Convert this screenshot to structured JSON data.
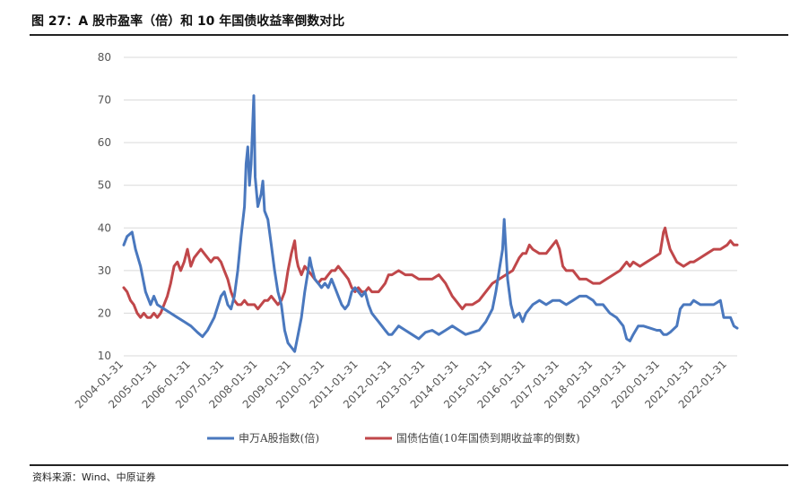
{
  "header": {
    "title": "图 27：A 股市盈率（倍）和 10 年国债收益率倒数对比"
  },
  "footer": {
    "source": "资料来源：Wind、中原证券"
  },
  "colors": {
    "series_1": "#4a78be",
    "series_2": "#c0474a",
    "grid": "#d9d9d9"
  },
  "chart_data": {
    "type": "line",
    "title": "",
    "xlabel": "",
    "ylabel": "",
    "ylim": [
      10,
      80
    ],
    "yticks": [
      10,
      20,
      30,
      40,
      50,
      60,
      70,
      80
    ],
    "grid": true,
    "legend_position": "bottom",
    "xticks": [
      "2004-01-31",
      "2005-01-31",
      "2006-01-31",
      "2007-01-31",
      "2008-01-31",
      "2009-01-31",
      "2010-01-31",
      "2011-01-31",
      "2012-01-31",
      "2013-01-31",
      "2014-01-31",
      "2015-01-31",
      "2016-01-31",
      "2017-01-31",
      "2018-01-31",
      "2019-01-31",
      "2020-01-31",
      "2021-01-31",
      "2022-01-31"
    ],
    "x_range": [
      2004.0,
      2022.3
    ],
    "series": [
      {
        "name": "申万A股指数(倍)",
        "color": "#4a78be",
        "points": [
          [
            2004.0,
            36
          ],
          [
            2004.1,
            38
          ],
          [
            2004.25,
            39
          ],
          [
            2004.35,
            35
          ],
          [
            2004.5,
            31
          ],
          [
            2004.65,
            25
          ],
          [
            2004.8,
            22
          ],
          [
            2004.9,
            24
          ],
          [
            2005.0,
            22
          ],
          [
            2005.2,
            21
          ],
          [
            2005.4,
            20
          ],
          [
            2005.6,
            19
          ],
          [
            2005.8,
            18
          ],
          [
            2006.0,
            17
          ],
          [
            2006.2,
            15.5
          ],
          [
            2006.35,
            14.5
          ],
          [
            2006.5,
            16
          ],
          [
            2006.7,
            19
          ],
          [
            2006.9,
            24
          ],
          [
            2007.0,
            25
          ],
          [
            2007.1,
            22
          ],
          [
            2007.2,
            21
          ],
          [
            2007.3,
            24
          ],
          [
            2007.4,
            30
          ],
          [
            2007.5,
            38
          ],
          [
            2007.6,
            45
          ],
          [
            2007.65,
            55
          ],
          [
            2007.7,
            59
          ],
          [
            2007.75,
            50
          ],
          [
            2007.8,
            55
          ],
          [
            2007.85,
            65
          ],
          [
            2007.88,
            71
          ],
          [
            2007.92,
            52
          ],
          [
            2008.0,
            45
          ],
          [
            2008.1,
            48
          ],
          [
            2008.15,
            51
          ],
          [
            2008.2,
            44
          ],
          [
            2008.3,
            42
          ],
          [
            2008.4,
            36
          ],
          [
            2008.5,
            30
          ],
          [
            2008.6,
            25
          ],
          [
            2008.7,
            22
          ],
          [
            2008.8,
            16
          ],
          [
            2008.9,
            13
          ],
          [
            2009.0,
            12
          ],
          [
            2009.1,
            11
          ],
          [
            2009.2,
            15
          ],
          [
            2009.3,
            19
          ],
          [
            2009.4,
            25
          ],
          [
            2009.5,
            30
          ],
          [
            2009.55,
            33
          ],
          [
            2009.6,
            31
          ],
          [
            2009.7,
            28
          ],
          [
            2009.8,
            27
          ],
          [
            2009.9,
            26
          ],
          [
            2010.0,
            27
          ],
          [
            2010.1,
            26
          ],
          [
            2010.2,
            28
          ],
          [
            2010.3,
            26
          ],
          [
            2010.4,
            24
          ],
          [
            2010.5,
            22
          ],
          [
            2010.6,
            21
          ],
          [
            2010.7,
            22
          ],
          [
            2010.8,
            25
          ],
          [
            2010.9,
            26
          ],
          [
            2011.0,
            25
          ],
          [
            2011.1,
            24
          ],
          [
            2011.2,
            25
          ],
          [
            2011.3,
            22
          ],
          [
            2011.4,
            20
          ],
          [
            2011.5,
            19
          ],
          [
            2011.6,
            18
          ],
          [
            2011.7,
            17
          ],
          [
            2011.8,
            16
          ],
          [
            2011.9,
            15
          ],
          [
            2012.0,
            15
          ],
          [
            2012.2,
            17
          ],
          [
            2012.4,
            16
          ],
          [
            2012.6,
            15
          ],
          [
            2012.8,
            14
          ],
          [
            2013.0,
            15.5
          ],
          [
            2013.2,
            16
          ],
          [
            2013.4,
            15
          ],
          [
            2013.6,
            16
          ],
          [
            2013.8,
            17
          ],
          [
            2014.0,
            16
          ],
          [
            2014.2,
            15
          ],
          [
            2014.4,
            15.5
          ],
          [
            2014.6,
            16
          ],
          [
            2014.8,
            18
          ],
          [
            2015.0,
            21
          ],
          [
            2015.1,
            25
          ],
          [
            2015.2,
            30
          ],
          [
            2015.3,
            35
          ],
          [
            2015.35,
            42
          ],
          [
            2015.4,
            35
          ],
          [
            2015.45,
            28
          ],
          [
            2015.55,
            22
          ],
          [
            2015.65,
            19
          ],
          [
            2015.8,
            20
          ],
          [
            2015.9,
            18
          ],
          [
            2016.0,
            20
          ],
          [
            2016.2,
            22
          ],
          [
            2016.4,
            23
          ],
          [
            2016.6,
            22
          ],
          [
            2016.8,
            23
          ],
          [
            2017.0,
            23
          ],
          [
            2017.2,
            22
          ],
          [
            2017.4,
            23
          ],
          [
            2017.6,
            24
          ],
          [
            2017.8,
            24
          ],
          [
            2018.0,
            23
          ],
          [
            2018.1,
            22
          ],
          [
            2018.3,
            22
          ],
          [
            2018.5,
            20
          ],
          [
            2018.7,
            19
          ],
          [
            2018.9,
            17
          ],
          [
            2019.0,
            14
          ],
          [
            2019.1,
            13.5
          ],
          [
            2019.2,
            15
          ],
          [
            2019.35,
            17
          ],
          [
            2019.5,
            17
          ],
          [
            2019.7,
            16.5
          ],
          [
            2019.9,
            16
          ],
          [
            2020.0,
            16
          ],
          [
            2020.1,
            15
          ],
          [
            2020.2,
            15
          ],
          [
            2020.3,
            15.5
          ],
          [
            2020.5,
            17
          ],
          [
            2020.6,
            21
          ],
          [
            2020.7,
            22
          ],
          [
            2020.9,
            22
          ],
          [
            2021.0,
            23
          ],
          [
            2021.2,
            22
          ],
          [
            2021.4,
            22
          ],
          [
            2021.6,
            22
          ],
          [
            2021.8,
            23
          ],
          [
            2021.9,
            19
          ],
          [
            2022.0,
            19
          ],
          [
            2022.1,
            19
          ],
          [
            2022.2,
            17
          ],
          [
            2022.3,
            16.5
          ]
        ]
      },
      {
        "name": "国债估值(10年国债到期收益率的倒数)",
        "color": "#c0474a",
        "points": [
          [
            2004.0,
            26
          ],
          [
            2004.1,
            25
          ],
          [
            2004.2,
            23
          ],
          [
            2004.3,
            22
          ],
          [
            2004.4,
            20
          ],
          [
            2004.5,
            19
          ],
          [
            2004.6,
            20
          ],
          [
            2004.7,
            19
          ],
          [
            2004.8,
            19
          ],
          [
            2004.9,
            20
          ],
          [
            2005.0,
            19
          ],
          [
            2005.1,
            20
          ],
          [
            2005.2,
            22
          ],
          [
            2005.3,
            24
          ],
          [
            2005.4,
            27
          ],
          [
            2005.5,
            31
          ],
          [
            2005.6,
            32
          ],
          [
            2005.7,
            30
          ],
          [
            2005.8,
            32
          ],
          [
            2005.9,
            35
          ],
          [
            2006.0,
            31
          ],
          [
            2006.1,
            33
          ],
          [
            2006.2,
            34
          ],
          [
            2006.3,
            35
          ],
          [
            2006.4,
            34
          ],
          [
            2006.5,
            33
          ],
          [
            2006.6,
            32
          ],
          [
            2006.7,
            33
          ],
          [
            2006.8,
            33
          ],
          [
            2006.9,
            32
          ],
          [
            2007.0,
            30
          ],
          [
            2007.1,
            28
          ],
          [
            2007.2,
            25
          ],
          [
            2007.3,
            23
          ],
          [
            2007.4,
            22
          ],
          [
            2007.5,
            22
          ],
          [
            2007.6,
            23
          ],
          [
            2007.7,
            22
          ],
          [
            2007.8,
            22
          ],
          [
            2007.9,
            22
          ],
          [
            2008.0,
            21
          ],
          [
            2008.1,
            22
          ],
          [
            2008.2,
            23
          ],
          [
            2008.3,
            23
          ],
          [
            2008.4,
            24
          ],
          [
            2008.5,
            23
          ],
          [
            2008.6,
            22
          ],
          [
            2008.7,
            23
          ],
          [
            2008.8,
            25
          ],
          [
            2008.9,
            30
          ],
          [
            2009.0,
            34
          ],
          [
            2009.1,
            37
          ],
          [
            2009.15,
            33
          ],
          [
            2009.2,
            31
          ],
          [
            2009.3,
            29
          ],
          [
            2009.4,
            31
          ],
          [
            2009.5,
            30
          ],
          [
            2009.6,
            29
          ],
          [
            2009.7,
            28
          ],
          [
            2009.8,
            27
          ],
          [
            2009.9,
            28
          ],
          [
            2010.0,
            28
          ],
          [
            2010.1,
            29
          ],
          [
            2010.2,
            30
          ],
          [
            2010.3,
            30
          ],
          [
            2010.4,
            31
          ],
          [
            2010.5,
            30
          ],
          [
            2010.6,
            29
          ],
          [
            2010.7,
            28
          ],
          [
            2010.8,
            26
          ],
          [
            2010.9,
            25
          ],
          [
            2011.0,
            26
          ],
          [
            2011.1,
            25
          ],
          [
            2011.2,
            25
          ],
          [
            2011.3,
            26
          ],
          [
            2011.4,
            25
          ],
          [
            2011.5,
            25
          ],
          [
            2011.6,
            25
          ],
          [
            2011.7,
            26
          ],
          [
            2011.8,
            27
          ],
          [
            2011.9,
            29
          ],
          [
            2012.0,
            29
          ],
          [
            2012.2,
            30
          ],
          [
            2012.4,
            29
          ],
          [
            2012.6,
            29
          ],
          [
            2012.8,
            28
          ],
          [
            2013.0,
            28
          ],
          [
            2013.2,
            28
          ],
          [
            2013.4,
            29
          ],
          [
            2013.6,
            27
          ],
          [
            2013.8,
            24
          ],
          [
            2014.0,
            22
          ],
          [
            2014.1,
            21
          ],
          [
            2014.2,
            22
          ],
          [
            2014.4,
            22
          ],
          [
            2014.6,
            23
          ],
          [
            2014.8,
            25
          ],
          [
            2015.0,
            27
          ],
          [
            2015.2,
            28
          ],
          [
            2015.4,
            29
          ],
          [
            2015.6,
            30
          ],
          [
            2015.8,
            33
          ],
          [
            2015.9,
            34
          ],
          [
            2016.0,
            34
          ],
          [
            2016.1,
            36
          ],
          [
            2016.2,
            35
          ],
          [
            2016.4,
            34
          ],
          [
            2016.6,
            34
          ],
          [
            2016.8,
            36
          ],
          [
            2016.9,
            37
          ],
          [
            2017.0,
            35
          ],
          [
            2017.1,
            31
          ],
          [
            2017.2,
            30
          ],
          [
            2017.4,
            30
          ],
          [
            2017.6,
            28
          ],
          [
            2017.8,
            28
          ],
          [
            2018.0,
            27
          ],
          [
            2018.2,
            27
          ],
          [
            2018.4,
            28
          ],
          [
            2018.6,
            29
          ],
          [
            2018.8,
            30
          ],
          [
            2019.0,
            32
          ],
          [
            2019.1,
            31
          ],
          [
            2019.2,
            32
          ],
          [
            2019.4,
            31
          ],
          [
            2019.6,
            32
          ],
          [
            2019.8,
            33
          ],
          [
            2020.0,
            34
          ],
          [
            2020.1,
            39
          ],
          [
            2020.15,
            40
          ],
          [
            2020.2,
            38
          ],
          [
            2020.3,
            35
          ],
          [
            2020.5,
            32
          ],
          [
            2020.7,
            31
          ],
          [
            2020.9,
            32
          ],
          [
            2021.0,
            32
          ],
          [
            2021.2,
            33
          ],
          [
            2021.4,
            34
          ],
          [
            2021.6,
            35
          ],
          [
            2021.8,
            35
          ],
          [
            2022.0,
            36
          ],
          [
            2022.1,
            37
          ],
          [
            2022.2,
            36
          ],
          [
            2022.3,
            36
          ]
        ]
      }
    ]
  }
}
